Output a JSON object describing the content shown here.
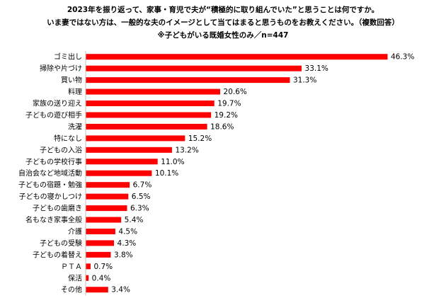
{
  "chart_data": {
    "type": "bar",
    "orientation": "horizontal",
    "title_lines": [
      "2023年を振り返って、家事・育児で夫が“積極的に取り組んでいた”と思うことは何ですか。",
      "いま妻ではない方は、一般的な夫のイメージとして当てはまると思うものをお教えください。（複数回答）",
      "※子どもがいる既婚女性のみ／n=447"
    ],
    "categories": [
      "ゴミ出し",
      "掃除や片づけ",
      "買い物",
      "料理",
      "家族の送り迎え",
      "子どもの遊び相手",
      "洗濯",
      "特になし",
      "子どもの入浴",
      "子どもの学校行事",
      "自治会など地域活動",
      "子どもの宿題・勉強",
      "子どもの寝かしつけ",
      "子どもの歯磨き",
      "名もなき家事全般",
      "介護",
      "子どもの受験",
      "子どもの着替え",
      "ＰＴＡ",
      "保活",
      "その他"
    ],
    "values": [
      46.3,
      33.1,
      31.3,
      20.6,
      19.7,
      19.2,
      18.6,
      15.2,
      13.2,
      11.0,
      10.1,
      6.7,
      6.5,
      6.3,
      5.4,
      4.5,
      4.3,
      3.8,
      0.7,
      0.4,
      3.4
    ],
    "value_labels": [
      "46.3%",
      "33.1%",
      "31.3%",
      "20.6%",
      "19.7%",
      "19.2%",
      "18.6%",
      "15.2%",
      "13.2%",
      "11.0%",
      "10.1%",
      "6.7%",
      "6.5%",
      "6.3%",
      "5.4%",
      "4.5%",
      "4.3%",
      "3.8%",
      "0.7%",
      "0.4%",
      "3.4%"
    ],
    "bar_color": "#ff0000",
    "axis_color": "#bfbfbf",
    "xlim": [
      0,
      50
    ],
    "grid": false
  }
}
